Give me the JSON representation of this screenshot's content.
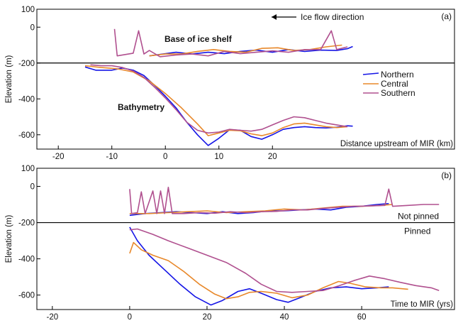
{
  "colors": {
    "northern": "#1515e6",
    "central": "#e8882a",
    "southern": "#b0508f",
    "axis": "#000000"
  },
  "chart_data": [
    {
      "type": "line",
      "panel_label": "(a)",
      "ylabel": "Elevation (m)",
      "xlabel": "Distance upstream of MIR (km)",
      "xlim": [
        -24,
        54
      ],
      "ylim": [
        -680,
        100
      ],
      "x_ticks": [
        "-20",
        "-10",
        "0",
        "10",
        "20"
      ],
      "y_ticks": [
        "100",
        "0",
        "-200",
        "-400",
        "-600"
      ],
      "grid": false,
      "legend": {
        "position": "right",
        "entries": [
          "Northern",
          "Central",
          "Southern"
        ]
      },
      "annotations": [
        "Ice flow direction",
        "Base of ice shelf",
        "Bathymetry"
      ],
      "reference_line_y": -200,
      "series": [
        {
          "name": "Northern",
          "bathymetry": [
            [
              -15,
              -222
            ],
            [
              -13,
              -240
            ],
            [
              -10,
              -240
            ],
            [
              -8,
              -228
            ],
            [
              -6,
              -240
            ],
            [
              -4,
              -270
            ],
            [
              -2,
              -325
            ],
            [
              0,
              -385
            ],
            [
              2,
              -450
            ],
            [
              4,
              -530
            ],
            [
              6,
              -600
            ],
            [
              8,
              -660
            ],
            [
              10,
              -620
            ],
            [
              12,
              -572
            ],
            [
              14,
              -575
            ],
            [
              16,
              -610
            ],
            [
              18,
              -625
            ],
            [
              20,
              -600
            ],
            [
              22,
              -570
            ],
            [
              24,
              -560
            ],
            [
              26,
              -555
            ],
            [
              28,
              -560
            ],
            [
              30,
              -562
            ],
            [
              32,
              -558
            ],
            [
              34,
              -550
            ],
            [
              35,
              -552
            ]
          ],
          "base": [
            [
              -3,
              -160
            ],
            [
              2,
              -140
            ],
            [
              5,
              -150
            ],
            [
              8,
              -140
            ],
            [
              11,
              -148
            ],
            [
              14,
              -135
            ],
            [
              17,
              -128
            ],
            [
              20,
              -140
            ],
            [
              23,
              -125
            ],
            [
              26,
              -135
            ],
            [
              29,
              -128
            ],
            [
              32,
              -130
            ],
            [
              34,
              -120
            ],
            [
              35,
              -108
            ]
          ]
        },
        {
          "name": "Central",
          "bathymetry": [
            [
              -15,
              -215
            ],
            [
              -12,
              -225
            ],
            [
              -9,
              -232
            ],
            [
              -6,
              -250
            ],
            [
              -3,
              -300
            ],
            [
              0,
              -370
            ],
            [
              3,
              -450
            ],
            [
              6,
              -540
            ],
            [
              8,
              -605
            ],
            [
              10,
              -590
            ],
            [
              12,
              -575
            ],
            [
              14,
              -578
            ],
            [
              16,
              -595
            ],
            [
              18,
              -605
            ],
            [
              20,
              -590
            ],
            [
              22,
              -560
            ],
            [
              24,
              -540
            ],
            [
              26,
              -535
            ],
            [
              28,
              -545
            ],
            [
              30,
              -555
            ],
            [
              32,
              -560
            ],
            [
              34,
              -555
            ]
          ],
          "base": [
            [
              -3,
              -160
            ],
            [
              0,
              -150
            ],
            [
              3,
              -150
            ],
            [
              6,
              -135
            ],
            [
              9,
              -125
            ],
            [
              12,
              -135
            ],
            [
              15,
              -140
            ],
            [
              18,
              -118
            ],
            [
              21,
              -115
            ],
            [
              24,
              -130
            ],
            [
              27,
              -125
            ],
            [
              30,
              -110
            ],
            [
              33,
              -100
            ]
          ]
        },
        {
          "name": "Southern",
          "bathymetry": [
            [
              -14,
              -210
            ],
            [
              -12,
              -215
            ],
            [
              -10,
              -215
            ],
            [
              -8,
              -225
            ],
            [
              -6,
              -245
            ],
            [
              -4,
              -280
            ],
            [
              -2,
              -335
            ],
            [
              0,
              -395
            ],
            [
              2,
              -460
            ],
            [
              4,
              -530
            ],
            [
              6,
              -575
            ],
            [
              8,
              -590
            ],
            [
              10,
              -585
            ],
            [
              12,
              -570
            ],
            [
              14,
              -575
            ],
            [
              16,
              -580
            ],
            [
              18,
              -570
            ],
            [
              20,
              -545
            ],
            [
              22,
              -520
            ],
            [
              24,
              -500
            ],
            [
              26,
              -505
            ],
            [
              28,
              -520
            ],
            [
              30,
              -535
            ],
            [
              32,
              -545
            ],
            [
              34,
              -555
            ]
          ],
          "base": [
            [
              -9.5,
              -10
            ],
            [
              -9,
              -160
            ],
            [
              -6,
              -145
            ],
            [
              -5,
              -20
            ],
            [
              -4,
              -150
            ],
            [
              -3,
              -130
            ],
            [
              -1,
              -165
            ],
            [
              2,
              -155
            ],
            [
              5,
              -150
            ],
            [
              8,
              -160
            ],
            [
              11,
              -135
            ],
            [
              14,
              -148
            ],
            [
              17,
              -140
            ],
            [
              20,
              -132
            ],
            [
              23,
              -140
            ],
            [
              26,
              -125
            ],
            [
              29,
              -125
            ],
            [
              31,
              -20
            ],
            [
              32,
              -125
            ],
            [
              34,
              -110
            ]
          ]
        }
      ]
    },
    {
      "type": "line",
      "panel_label": "(b)",
      "ylabel": "Elevation (m)",
      "xlabel": "Time to MIR (yrs)",
      "xlim": [
        -24,
        84
      ],
      "ylim": [
        -680,
        100
      ],
      "x_ticks": [
        "-20",
        "0",
        "20",
        "40",
        "60"
      ],
      "y_ticks": [
        "100",
        "0",
        "-200",
        "-400",
        "-600"
      ],
      "grid": false,
      "annotations": [
        "Not pinned",
        "Pinned"
      ],
      "reference_line_y": -200,
      "series": [
        {
          "name": "Northern",
          "bathymetry": [
            [
              0,
              -225
            ],
            [
              2,
              -300
            ],
            [
              5,
              -380
            ],
            [
              9,
              -460
            ],
            [
              13,
              -540
            ],
            [
              17,
              -610
            ],
            [
              21,
              -655
            ],
            [
              24,
              -630
            ],
            [
              28,
              -580
            ],
            [
              31,
              -565
            ],
            [
              34,
              -590
            ],
            [
              38,
              -625
            ],
            [
              41,
              -640
            ],
            [
              44,
              -615
            ],
            [
              48,
              -580
            ],
            [
              52,
              -560
            ],
            [
              56,
              -555
            ],
            [
              60,
              -565
            ],
            [
              64,
              -560
            ],
            [
              67,
              -555
            ]
          ],
          "base": [
            [
              0,
              -160
            ],
            [
              4,
              -150
            ],
            [
              8,
              -145
            ],
            [
              12,
              -140
            ],
            [
              16,
              -145
            ],
            [
              20,
              -150
            ],
            [
              24,
              -140
            ],
            [
              28,
              -150
            ],
            [
              32,
              -145
            ],
            [
              36,
              -135
            ],
            [
              40,
              -135
            ],
            [
              44,
              -130
            ],
            [
              48,
              -125
            ],
            [
              52,
              -130
            ],
            [
              56,
              -115
            ],
            [
              60,
              -110
            ],
            [
              64,
              -100
            ],
            [
              67,
              -95
            ]
          ]
        },
        {
          "name": "Central",
          "bathymetry": [
            [
              0,
              -370
            ],
            [
              1,
              -310
            ],
            [
              3,
              -350
            ],
            [
              6,
              -380
            ],
            [
              10,
              -410
            ],
            [
              14,
              -470
            ],
            [
              18,
              -540
            ],
            [
              22,
              -595
            ],
            [
              25,
              -620
            ],
            [
              28,
              -610
            ],
            [
              31,
              -585
            ],
            [
              34,
              -580
            ],
            [
              38,
              -590
            ],
            [
              42,
              -615
            ],
            [
              46,
              -600
            ],
            [
              50,
              -560
            ],
            [
              54,
              -525
            ],
            [
              57,
              -535
            ],
            [
              61,
              -555
            ],
            [
              65,
              -560
            ],
            [
              68,
              -560
            ],
            [
              72,
              -568
            ]
          ],
          "base": [
            [
              0,
              -150
            ],
            [
              5,
              -150
            ],
            [
              10,
              -145
            ],
            [
              15,
              -140
            ],
            [
              20,
              -135
            ],
            [
              25,
              -145
            ],
            [
              30,
              -140
            ],
            [
              35,
              -135
            ],
            [
              40,
              -125
            ],
            [
              45,
              -130
            ],
            [
              50,
              -120
            ],
            [
              55,
              -110
            ],
            [
              60,
              -110
            ],
            [
              65,
              -105
            ],
            [
              68,
              -100
            ]
          ]
        },
        {
          "name": "Southern",
          "bathymetry": [
            [
              0,
              -240
            ],
            [
              2,
              -235
            ],
            [
              6,
              -265
            ],
            [
              10,
              -300
            ],
            [
              15,
              -340
            ],
            [
              20,
              -380
            ],
            [
              25,
              -420
            ],
            [
              30,
              -480
            ],
            [
              34,
              -540
            ],
            [
              38,
              -580
            ],
            [
              42,
              -585
            ],
            [
              46,
              -580
            ],
            [
              50,
              -575
            ],
            [
              54,
              -550
            ],
            [
              58,
              -520
            ],
            [
              62,
              -495
            ],
            [
              66,
              -510
            ],
            [
              70,
              -530
            ],
            [
              74,
              -548
            ],
            [
              78,
              -560
            ],
            [
              80,
              -575
            ]
          ],
          "base": [
            [
              0,
              -15
            ],
            [
              0.5,
              -150
            ],
            [
              2,
              -145
            ],
            [
              3,
              -30
            ],
            [
              4,
              -150
            ],
            [
              6,
              -25
            ],
            [
              7,
              -150
            ],
            [
              8,
              -25
            ],
            [
              9,
              -150
            ],
            [
              10,
              -5
            ],
            [
              11,
              -150
            ],
            [
              14,
              -150
            ],
            [
              18,
              -145
            ],
            [
              22,
              -148
            ],
            [
              26,
              -140
            ],
            [
              30,
              -145
            ],
            [
              34,
              -140
            ],
            [
              38,
              -138
            ],
            [
              42,
              -130
            ],
            [
              46,
              -130
            ],
            [
              50,
              -122
            ],
            [
              54,
              -115
            ],
            [
              58,
              -110
            ],
            [
              62,
              -108
            ],
            [
              66,
              -105
            ],
            [
              67,
              -15
            ],
            [
              68,
              -110
            ],
            [
              72,
              -105
            ],
            [
              76,
              -100
            ],
            [
              80,
              -100
            ]
          ]
        }
      ]
    }
  ]
}
